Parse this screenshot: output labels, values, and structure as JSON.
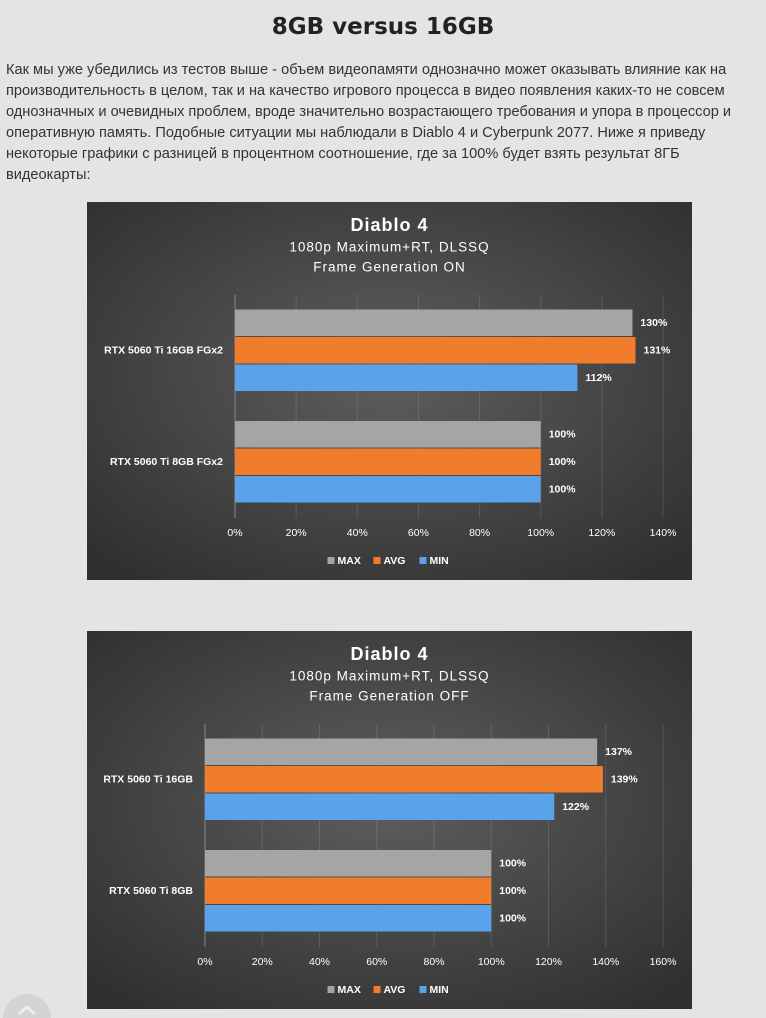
{
  "heading": "8GB versus 16GB",
  "paragraph": "Как мы уже убедились из тестов выше - объем видеопамяти однозначно может оказывать влияние как на производительность в целом, так и на качество игрового процесса в видео появления каких-то не совсем однозначных и очевидных проблем, вроде значительно возрастающего требования и упора в процессор и оперативную память. Подобные ситуации мы наблюдали в Diablo 4 и Cyberpunk 2077. Ниже я приведу некоторые графики с разницей в процентном соотношение, где за 100% будет взять результат 8ГБ видеокарты:",
  "chart_data": [
    {
      "type": "hbar",
      "title": "Diablo 4",
      "subtitle": [
        "1080p Maximum+RT, DLSSQ",
        "Frame Generation ON"
      ],
      "categories": [
        "RTX 5060 Ti 16GB FGx2",
        "RTX 5060 Ti 8GB FGx2"
      ],
      "series": [
        {
          "name": "MAX",
          "color": "#a5a5a5",
          "values": [
            130,
            100
          ],
          "value_labels": [
            "130%",
            "100%"
          ]
        },
        {
          "name": "AVG",
          "color": "#f07c2c",
          "values": [
            131,
            100
          ],
          "value_labels": [
            "131%",
            "100%"
          ]
        },
        {
          "name": "MIN",
          "color": "#5aa2ea",
          "values": [
            112,
            100
          ],
          "value_labels": [
            "112%",
            "100%"
          ]
        }
      ],
      "xlim": [
        0,
        140
      ],
      "xticks": [
        {
          "value": 0,
          "label": "0%"
        },
        {
          "value": 20,
          "label": "20%"
        },
        {
          "value": 40,
          "label": "40%"
        },
        {
          "value": 60,
          "label": "60%"
        },
        {
          "value": 80,
          "label": "80%"
        },
        {
          "value": 100,
          "label": "100%"
        },
        {
          "value": 120,
          "label": "120%"
        },
        {
          "value": 140,
          "label": "140%"
        }
      ],
      "grid": true,
      "legend": "bottom"
    },
    {
      "type": "hbar",
      "title": "Diablo 4",
      "subtitle": [
        "1080p Maximum+RT, DLSSQ",
        "Frame Generation OFF"
      ],
      "categories": [
        "RTX 5060 Ti 16GB",
        "RTX 5060 Ti 8GB"
      ],
      "series": [
        {
          "name": "MAX",
          "color": "#a5a5a5",
          "values": [
            137,
            100
          ],
          "value_labels": [
            "137%",
            "100%"
          ]
        },
        {
          "name": "AVG",
          "color": "#f07c2c",
          "values": [
            139,
            100
          ],
          "value_labels": [
            "139%",
            "100%"
          ]
        },
        {
          "name": "MIN",
          "color": "#5aa2ea",
          "values": [
            122,
            100
          ],
          "value_labels": [
            "122%",
            "100%"
          ]
        }
      ],
      "xlim": [
        0,
        160
      ],
      "xticks": [
        {
          "value": 0,
          "label": "0%"
        },
        {
          "value": 20,
          "label": "20%"
        },
        {
          "value": 40,
          "label": "40%"
        },
        {
          "value": 60,
          "label": "60%"
        },
        {
          "value": 80,
          "label": "80%"
        },
        {
          "value": 100,
          "label": "100%"
        },
        {
          "value": 120,
          "label": "120%"
        },
        {
          "value": 140,
          "label": "140%"
        },
        {
          "value": 160,
          "label": "160%"
        }
      ],
      "grid": true,
      "legend": "bottom"
    }
  ]
}
